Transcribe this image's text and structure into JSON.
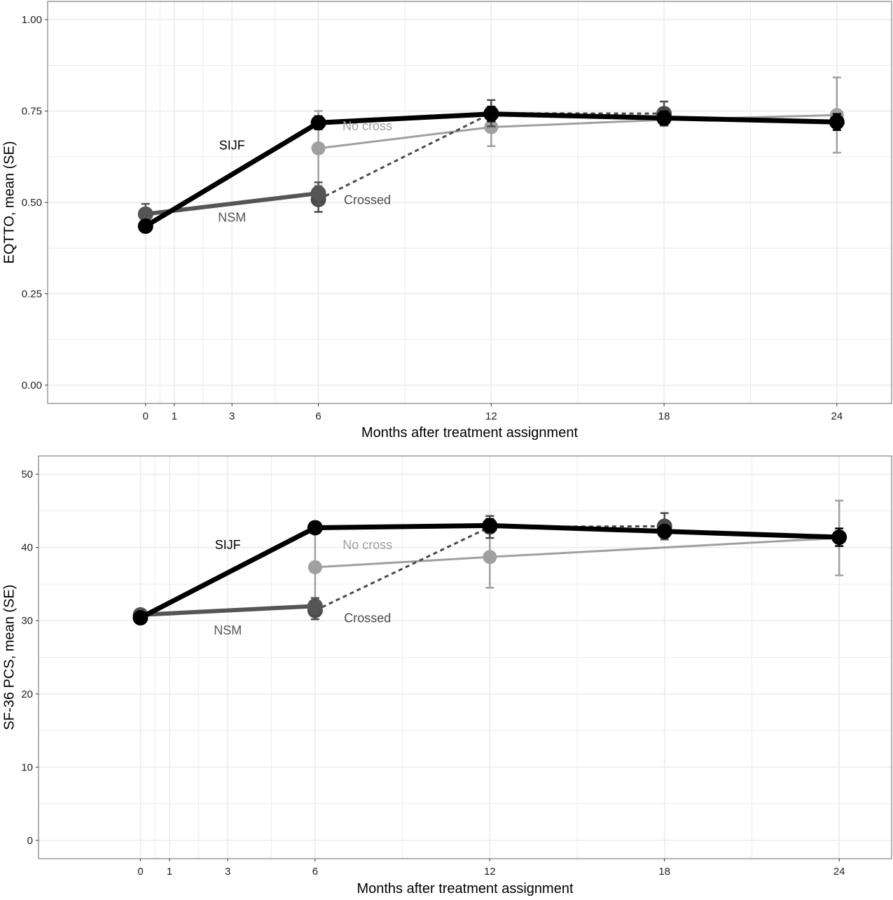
{
  "colors": {
    "sijf": "#000000",
    "nsm": "#555555",
    "no_cross": "#a0a0a0",
    "crossed": "#4a4a4a",
    "grid": "#ececec",
    "panel_border": "#808080"
  },
  "chart_data": [
    {
      "type": "line",
      "xlabel": "Months after treatment assignment",
      "ylabel": "EQTTO, mean (SE)",
      "xlim": [
        -3.4,
        25.9
      ],
      "ylim": [
        -0.05,
        1.05
      ],
      "x_ticks": [
        0,
        1,
        3,
        6,
        12,
        18,
        24
      ],
      "x_tick_labels": [
        "0",
        "1",
        "3",
        "6",
        "12",
        "18",
        "24"
      ],
      "y_ticks": [
        0,
        0.25,
        0.5,
        0.75,
        1.0
      ],
      "y_tick_labels": [
        "0.00",
        "0.25",
        "0.50",
        "0.75",
        "1.00"
      ],
      "grid": true,
      "legend": "none",
      "series": [
        {
          "name": "SIJF",
          "style": "thick",
          "x": [
            0,
            6,
            12,
            18,
            24
          ],
          "y": [
            0.435,
            0.718,
            0.742,
            0.731,
            0.72
          ],
          "se": [
            0.012,
            0.018,
            0.02,
            0.018,
            0.022
          ]
        },
        {
          "name": "NSM",
          "style": "thick",
          "x": [
            0,
            6
          ],
          "y": [
            0.468,
            0.525
          ],
          "se": [
            0.028,
            0.03
          ]
        },
        {
          "name": "No cross",
          "style": "thin",
          "x": [
            6,
            12,
            18,
            24
          ],
          "y": [
            0.648,
            0.706,
            0.726,
            0.739
          ],
          "se": [
            0.102,
            0.052,
            0.01,
            0.103
          ]
        },
        {
          "name": "Crossed",
          "style": "dashed",
          "x": [
            6,
            12,
            18
          ],
          "y": [
            0.508,
            0.744,
            0.743
          ],
          "se": [
            0.034,
            0.036,
            0.033
          ]
        }
      ],
      "annotations": [
        {
          "text": "SIJF",
          "x": 3.0,
          "y": 0.645,
          "series": "SIJF"
        },
        {
          "text": "NSM",
          "x": 3.0,
          "y": 0.447,
          "series": "NSM"
        },
        {
          "text": "No cross",
          "x": 7.7,
          "y": 0.697,
          "series": "No cross"
        },
        {
          "text": "Crossed",
          "x": 7.7,
          "y": 0.495,
          "series": "Crossed"
        }
      ]
    },
    {
      "type": "line",
      "xlabel": "Months after treatment assignment",
      "ylabel": "SF-36 PCS, mean (SE)",
      "xlim": [
        -3.5,
        25.8
      ],
      "ylim": [
        -2.5,
        52.5
      ],
      "x_ticks": [
        0,
        1,
        3,
        6,
        12,
        18,
        24
      ],
      "x_tick_labels": [
        "0",
        "1",
        "3",
        "6",
        "12",
        "18",
        "24"
      ],
      "y_ticks": [
        0,
        10,
        20,
        30,
        40,
        50
      ],
      "y_tick_labels": [
        "0",
        "10",
        "20",
        "30",
        "40",
        "50"
      ],
      "grid": true,
      "legend": "none",
      "series": [
        {
          "name": "SIJF",
          "style": "thick",
          "x": [
            0,
            6,
            12,
            18,
            24
          ],
          "y": [
            30.4,
            42.7,
            43.0,
            42.2,
            41.4
          ],
          "se": [
            0.6,
            0.6,
            0.9,
            0.8,
            1.2
          ]
        },
        {
          "name": "NSM",
          "style": "thick",
          "x": [
            0,
            6
          ],
          "y": [
            30.8,
            32.0
          ],
          "se": [
            0.6,
            1.1
          ]
        },
        {
          "name": "No cross",
          "style": "thin",
          "x": [
            6,
            12,
            24
          ],
          "y": [
            37.3,
            38.7,
            41.3
          ],
          "se": [
            4.7,
            4.2,
            5.1
          ]
        },
        {
          "name": "Crossed",
          "style": "dashed",
          "x": [
            6,
            12,
            18
          ],
          "y": [
            31.4,
            42.8,
            42.9
          ],
          "se": [
            1.2,
            1.5,
            1.8
          ]
        }
      ],
      "annotations": [
        {
          "text": "SIJF",
          "x": 3.0,
          "y": 39.8,
          "series": "SIJF"
        },
        {
          "text": "NSM",
          "x": 3.0,
          "y": 28.1,
          "series": "NSM"
        },
        {
          "text": "No cross",
          "x": 7.8,
          "y": 39.8,
          "series": "No cross"
        },
        {
          "text": "Crossed",
          "x": 7.8,
          "y": 29.8,
          "series": "Crossed"
        }
      ]
    }
  ]
}
